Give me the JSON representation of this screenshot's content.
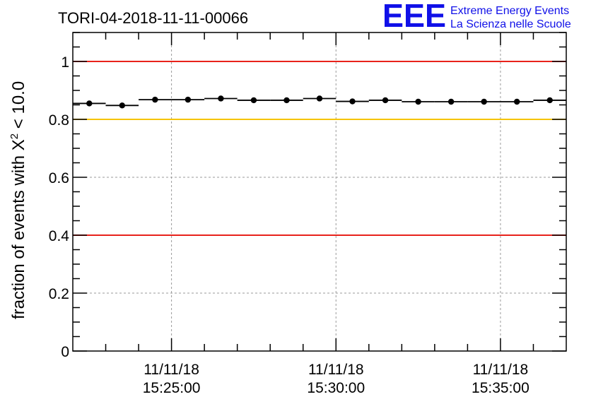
{
  "chart_data": {
    "type": "scatter",
    "title": "TORI-04-2018-11-11-00066",
    "ylabel_prefix": "fraction of events with X",
    "ylabel_superscript": "2",
    "ylabel_suffix": " < 10.0",
    "xlabel": "",
    "ylim": [
      0,
      1.1
    ],
    "y_ticks": [
      "0",
      "0.2",
      "0.4",
      "0.6",
      "0.8",
      "1"
    ],
    "y_tick_values": [
      0,
      0.2,
      0.4,
      0.6,
      0.8,
      1.0
    ],
    "x_range_bins": [
      0,
      15
    ],
    "x_time_ticks": [
      {
        "bin": 3,
        "date": "11/11/18",
        "time": "15:25:00"
      },
      {
        "bin": 8,
        "date": "11/11/18",
        "time": "15:30:00"
      },
      {
        "bin": 13,
        "date": "11/11/18",
        "time": "15:35:00"
      }
    ],
    "points": [
      0.855,
      0.848,
      0.868,
      0.868,
      0.872,
      0.866,
      0.866,
      0.872,
      0.862,
      0.866,
      0.861,
      0.861,
      0.861,
      0.861,
      0.866
    ],
    "reference_lines": [
      {
        "value": 1.0,
        "color": "#e8221b"
      },
      {
        "value": 0.8,
        "color": "#f5c400"
      },
      {
        "value": 0.4,
        "color": "#e8221b"
      }
    ],
    "grid": true
  },
  "logo": {
    "letters": "EEE",
    "line1": "Extreme Energy Events",
    "line2": "La Scienza nelle Scuole",
    "color": "#1010e8"
  }
}
